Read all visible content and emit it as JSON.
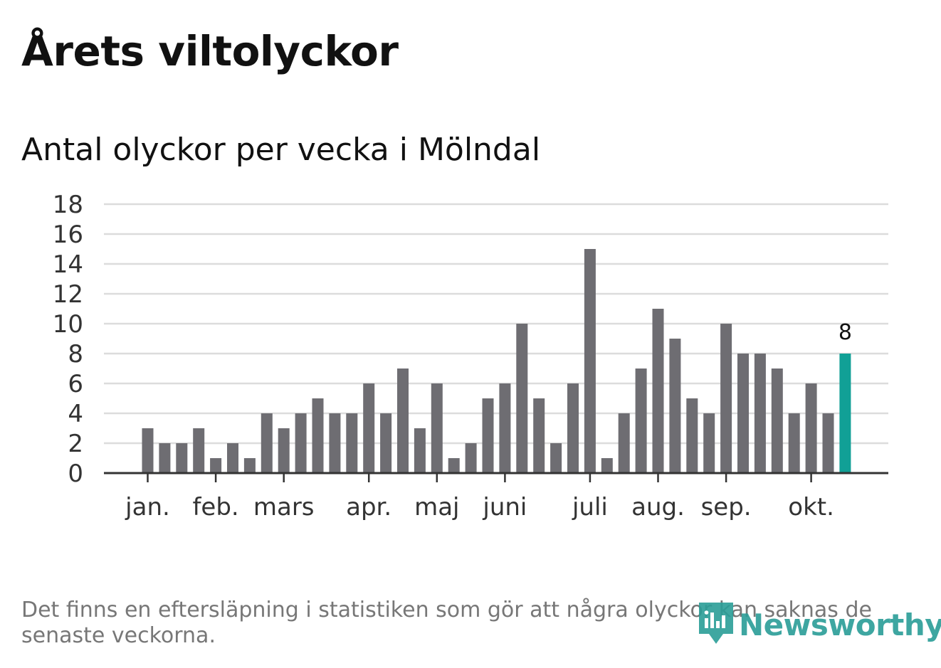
{
  "header": {
    "title": "Årets viltolyckor",
    "subtitle": "Antal olyckor per vecka i Mölndal"
  },
  "footer": {
    "note": "Det finns en eftersläpning i statistiken som gör att några olyckor kan saknas de senaste veckorna.",
    "brand": "Newsworthy",
    "brand_icon": "newsworthy-logo-icon"
  },
  "colors": {
    "bar": "#6e6d72",
    "highlight": "#11a096",
    "grid": "#dcdcdc",
    "axis": "#333333",
    "text": "#333333"
  },
  "chart_data": {
    "type": "bar",
    "title": "Antal olyckor per vecka i Mölndal",
    "xlabel": "",
    "ylabel": "",
    "ylim": [
      0,
      18
    ],
    "yticks": [
      0,
      2,
      4,
      6,
      8,
      10,
      12,
      14,
      16,
      18
    ],
    "grid": true,
    "values": [
      3,
      2,
      2,
      3,
      1,
      2,
      1,
      4,
      3,
      4,
      5,
      4,
      4,
      6,
      4,
      7,
      3,
      6,
      1,
      2,
      5,
      6,
      10,
      5,
      2,
      6,
      15,
      1,
      4,
      7,
      11,
      9,
      5,
      4,
      10,
      8,
      8,
      7,
      4,
      6,
      4,
      8
    ],
    "highlight_index": 41,
    "highlight_label": "8",
    "month_labels": [
      {
        "label": "jan.",
        "bar_index": 0.0
      },
      {
        "label": "feb.",
        "bar_index": 4.0
      },
      {
        "label": "mars",
        "bar_index": 8.0
      },
      {
        "label": "apr.",
        "bar_index": 13.0
      },
      {
        "label": "maj",
        "bar_index": 17.0
      },
      {
        "label": "juni",
        "bar_index": 21.0
      },
      {
        "label": "juli",
        "bar_index": 26.0
      },
      {
        "label": "aug.",
        "bar_index": 30.0
      },
      {
        "label": "sep.",
        "bar_index": 34.0
      },
      {
        "label": "okt.",
        "bar_index": 39.0
      }
    ]
  }
}
